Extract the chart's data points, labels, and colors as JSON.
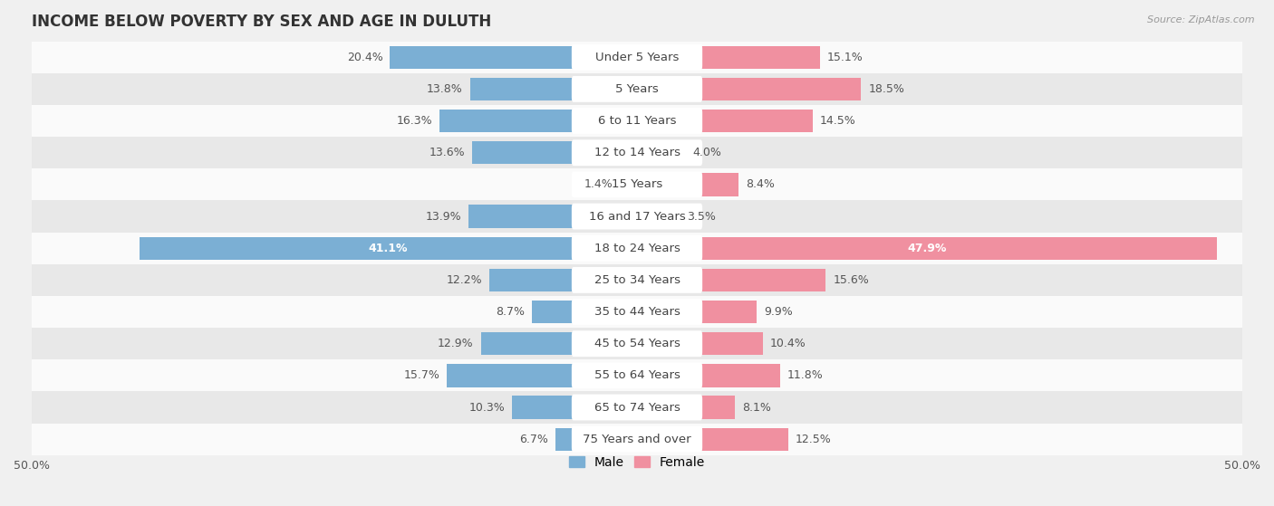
{
  "title": "INCOME BELOW POVERTY BY SEX AND AGE IN DULUTH",
  "source": "Source: ZipAtlas.com",
  "categories": [
    "Under 5 Years",
    "5 Years",
    "6 to 11 Years",
    "12 to 14 Years",
    "15 Years",
    "16 and 17 Years",
    "18 to 24 Years",
    "25 to 34 Years",
    "35 to 44 Years",
    "45 to 54 Years",
    "55 to 64 Years",
    "65 to 74 Years",
    "75 Years and over"
  ],
  "male": [
    20.4,
    13.8,
    16.3,
    13.6,
    1.4,
    13.9,
    41.1,
    12.2,
    8.7,
    12.9,
    15.7,
    10.3,
    6.7
  ],
  "female": [
    15.1,
    18.5,
    14.5,
    4.0,
    8.4,
    3.5,
    47.9,
    15.6,
    9.9,
    10.4,
    11.8,
    8.1,
    12.5
  ],
  "male_color": "#7bafd4",
  "female_color": "#f090a0",
  "axis_limit": 50.0,
  "background_color": "#f0f0f0",
  "row_bg_light": "#fafafa",
  "row_bg_dark": "#e8e8e8",
  "title_fontsize": 12,
  "label_fontsize": 9.5,
  "value_fontsize": 9,
  "tick_fontsize": 9,
  "legend_fontsize": 10
}
